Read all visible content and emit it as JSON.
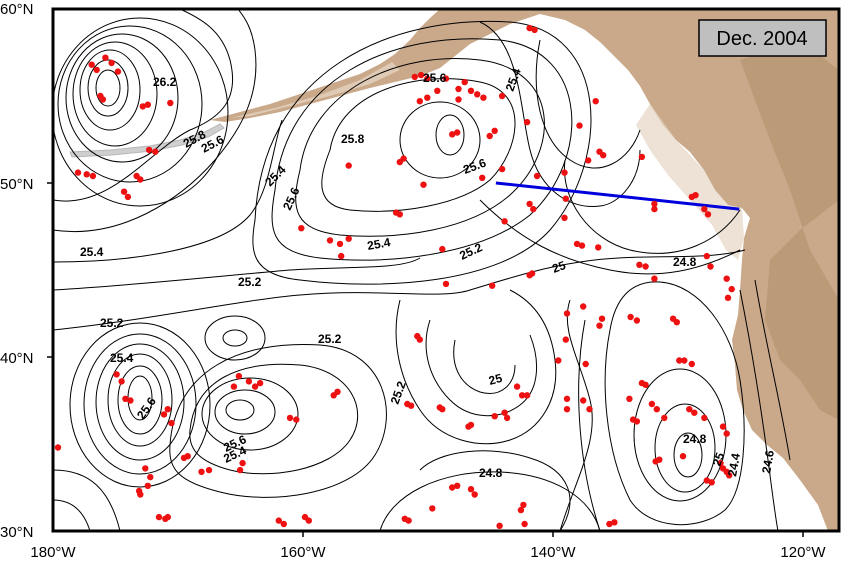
{
  "map": {
    "date_label": "Dec. 2004",
    "lon_range": [
      -180,
      -117
    ],
    "lat_range": [
      30,
      60
    ],
    "x_ticks": [
      "180°W",
      "160°W",
      "140°W",
      "120°W"
    ],
    "y_ticks": [
      "60°N",
      "50°N",
      "40°N",
      "30°N"
    ],
    "contour_labels": [
      "26.2",
      "25.8",
      "25.6",
      "25.6",
      "25.6",
      "25.4",
      "25.8",
      "25.4",
      "25.6",
      "25.6",
      "25.4",
      "25.4",
      "25.2",
      "25.2",
      "25.2",
      "25",
      "24.8",
      "25.2",
      "25.4",
      "25.6",
      "25.4",
      "25.2",
      "25",
      "24.8",
      "24.8",
      "24.4",
      "24.6",
      "25"
    ],
    "colors": {
      "land": "#c9a98a",
      "land_light": "#e6d6c3",
      "ocean": "#ffffff",
      "contour": "#000000",
      "stations": "#ee1111",
      "section_line": "#0000dd",
      "date_box": "#bfbfbf"
    },
    "section_line": {
      "from": [
        -144.5,
        50.0
      ],
      "to": [
        -125.0,
        48.5
      ]
    },
    "stations": [
      [
        -176.9,
        56.8
      ],
      [
        -176.5,
        56.5
      ],
      [
        -175.8,
        57.2
      ],
      [
        -175.3,
        56.9
      ],
      [
        -174.8,
        56.4
      ],
      [
        -176.2,
        55.0
      ],
      [
        -176.0,
        54.8
      ],
      [
        -172.8,
        54.4
      ],
      [
        -172.4,
        54.5
      ],
      [
        -170.6,
        54.6
      ],
      [
        -172.3,
        51.9
      ],
      [
        -171.8,
        51.8
      ],
      [
        -178.0,
        50.6
      ],
      [
        -177.3,
        50.5
      ],
      [
        -176.8,
        50.4
      ],
      [
        -173.3,
        50.4
      ],
      [
        -173.0,
        50.2
      ],
      [
        -174.3,
        49.5
      ],
      [
        -174.0,
        49.2
      ],
      [
        -151.0,
        56.1
      ],
      [
        -150.5,
        56.2
      ],
      [
        -150.0,
        56.0
      ],
      [
        -148.5,
        56.0
      ],
      [
        -149.2,
        55.3
      ],
      [
        -147.5,
        55.4
      ],
      [
        -147.0,
        55.8
      ],
      [
        -146.5,
        55.3
      ],
      [
        -146.0,
        55.1
      ],
      [
        -145.5,
        54.9
      ],
      [
        -144.0,
        55.0
      ],
      [
        -150.6,
        54.7
      ],
      [
        -150.0,
        54.9
      ],
      [
        -147.5,
        54.8
      ],
      [
        -148.0,
        52.8
      ],
      [
        -147.6,
        52.9
      ],
      [
        -145.0,
        52.7
      ],
      [
        -144.6,
        53.0
      ],
      [
        -142.0,
        53.5
      ],
      [
        -137.8,
        53.3
      ],
      [
        -136.5,
        54.7
      ],
      [
        -141.8,
        58.9
      ],
      [
        -141.4,
        58.8
      ],
      [
        -144.0,
        50.8
      ],
      [
        -145.6,
        50.3
      ],
      [
        -151.9,
        51.4
      ],
      [
        -152.2,
        51.2
      ],
      [
        -156.3,
        51.0
      ],
      [
        -150.3,
        49.9
      ],
      [
        -141.2,
        50.4
      ],
      [
        -139.0,
        50.6
      ],
      [
        -141.8,
        48.8
      ],
      [
        -141.5,
        48.5
      ],
      [
        -139.0,
        48.0
      ],
      [
        -143.8,
        47.8
      ],
      [
        -138.9,
        49.1
      ],
      [
        -137.1,
        51.3
      ],
      [
        -136.2,
        51.8
      ],
      [
        -135.9,
        51.6
      ],
      [
        -132.8,
        51.5
      ],
      [
        -131.8,
        48.8
      ],
      [
        -131.8,
        48.5
      ],
      [
        -128.8,
        49.2
      ],
      [
        -128.5,
        49.3
      ],
      [
        -127.8,
        48.5
      ],
      [
        -127.5,
        48.2
      ],
      [
        -138.0,
        46.5
      ],
      [
        -137.6,
        46.4
      ],
      [
        -136.3,
        46.3
      ],
      [
        -152.5,
        48.3
      ],
      [
        -152.2,
        48.2
      ],
      [
        -160.1,
        47.4
      ],
      [
        -157.8,
        46.7
      ],
      [
        -157.0,
        46.5
      ],
      [
        -156.3,
        46.8
      ],
      [
        -156.9,
        45.8
      ],
      [
        -148.8,
        46.2
      ],
      [
        -141.8,
        44.7
      ],
      [
        -141.6,
        44.8
      ],
      [
        -144.8,
        44.1
      ],
      [
        -148.5,
        44.2
      ],
      [
        -138.8,
        42.5
      ],
      [
        -137.5,
        42.9
      ],
      [
        -136.0,
        42.2
      ],
      [
        -136.2,
        41.8
      ],
      [
        -133.0,
        45.3
      ],
      [
        -132.5,
        45.2
      ],
      [
        -131.8,
        44.5
      ],
      [
        -127.6,
        45.8
      ],
      [
        -127.3,
        45.2
      ],
      [
        -126.0,
        44.5
      ],
      [
        -125.6,
        43.9
      ],
      [
        -125.9,
        43.4
      ],
      [
        -133.7,
        42.3
      ],
      [
        -133.2,
        42.1
      ],
      [
        -130.3,
        42.2
      ],
      [
        -130.0,
        42.0
      ],
      [
        -138.9,
        41.0
      ],
      [
        -150.8,
        41.2
      ],
      [
        -150.6,
        41.0
      ],
      [
        -137.3,
        39.6
      ],
      [
        -139.5,
        39.8
      ],
      [
        -132.8,
        38.5
      ],
      [
        -132.5,
        38.4
      ],
      [
        -129.8,
        39.8
      ],
      [
        -129.4,
        39.8
      ],
      [
        -128.8,
        39.6
      ],
      [
        -138.8,
        37.6
      ],
      [
        -138.8,
        37.0
      ],
      [
        -137.5,
        37.5
      ],
      [
        -137.0,
        37.0
      ],
      [
        -133.8,
        37.6
      ],
      [
        -142.8,
        38.3
      ],
      [
        -142.4,
        37.8
      ],
      [
        -142.0,
        37.8
      ],
      [
        -132.0,
        37.3
      ],
      [
        -131.6,
        37.0
      ],
      [
        -133.5,
        36.4
      ],
      [
        -133.2,
        36.3
      ],
      [
        -131.0,
        36.5
      ],
      [
        -129.0,
        37.0
      ],
      [
        -128.6,
        36.8
      ],
      [
        -127.8,
        36.5
      ],
      [
        -126.3,
        36.0
      ],
      [
        -126.0,
        35.6
      ],
      [
        -146.7,
        36.0
      ],
      [
        -146.5,
        36.1
      ],
      [
        -144.6,
        36.6
      ],
      [
        -151.6,
        37.3
      ],
      [
        -151.3,
        37.2
      ],
      [
        -149.0,
        37.1
      ],
      [
        -148.8,
        37.0
      ],
      [
        -143.8,
        36.8
      ],
      [
        -143.6,
        36.5
      ],
      [
        -131.7,
        34.0
      ],
      [
        -131.4,
        34.1
      ],
      [
        -129.5,
        34.3
      ],
      [
        -127.6,
        32.9
      ],
      [
        -127.2,
        32.8
      ],
      [
        -126.5,
        33.9
      ],
      [
        -126.3,
        33.6
      ],
      [
        -126.0,
        33.4
      ],
      [
        -125.8,
        33.2
      ],
      [
        -148.0,
        32.5
      ],
      [
        -147.6,
        32.6
      ],
      [
        -146.5,
        32.4
      ],
      [
        -146.2,
        32.1
      ],
      [
        -142.5,
        31.2
      ],
      [
        -142.3,
        31.5
      ],
      [
        -144.2,
        30.3
      ],
      [
        -142.2,
        30.4
      ],
      [
        -151.8,
        30.7
      ],
      [
        -151.5,
        30.6
      ],
      [
        -149.6,
        31.3
      ],
      [
        -135.4,
        30.4
      ],
      [
        -135.0,
        30.5
      ],
      [
        -171.1,
        36.7
      ],
      [
        -170.8,
        37.0
      ],
      [
        -170.5,
        36.2
      ],
      [
        -169.2,
        34.3
      ],
      [
        -169.5,
        34.2
      ],
      [
        -168.1,
        33.4
      ],
      [
        -167.5,
        33.5
      ],
      [
        -165.0,
        33.5
      ],
      [
        -164.8,
        33.9
      ],
      [
        -165.5,
        38.3
      ],
      [
        -165.1,
        38.9
      ],
      [
        -164.3,
        38.6
      ],
      [
        -163.8,
        38.3
      ],
      [
        -163.4,
        38.5
      ],
      [
        -161.0,
        36.5
      ],
      [
        -160.5,
        36.4
      ],
      [
        -157.5,
        37.8
      ],
      [
        -157.2,
        38.0
      ],
      [
        -174.5,
        38.6
      ],
      [
        -174.9,
        39.0
      ],
      [
        -174.2,
        37.6
      ],
      [
        -173.8,
        37.5
      ],
      [
        -172.6,
        33.6
      ],
      [
        -172.2,
        33.1
      ],
      [
        -172.4,
        32.6
      ],
      [
        -173.1,
        32.3
      ],
      [
        -173.0,
        32.1
      ],
      [
        -171.5,
        30.8
      ],
      [
        -171.0,
        30.7
      ],
      [
        -170.8,
        30.8
      ],
      [
        -161.9,
        30.6
      ],
      [
        -161.5,
        30.4
      ],
      [
        -159.8,
        30.8
      ],
      [
        -159.5,
        30.6
      ],
      [
        -179.6,
        34.8
      ]
    ]
  }
}
